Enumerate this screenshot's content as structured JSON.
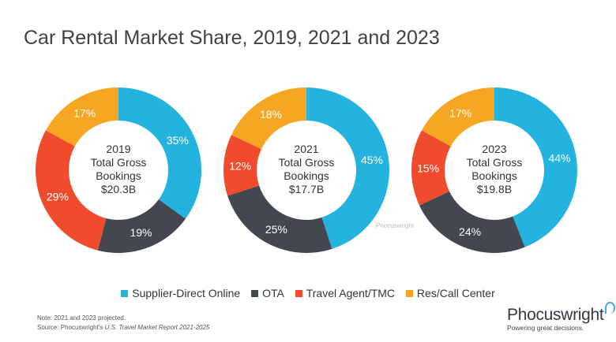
{
  "title": "Car Rental Market Share, 2019, 2021 and 2023",
  "chart_data": [
    {
      "type": "pie",
      "center_label": [
        "2019",
        "Total Gross",
        "Bookings",
        "$20.3B"
      ],
      "categories": [
        "Supplier-Direct Online",
        "OTA",
        "Travel Agent/TMC",
        "Res/Call Center"
      ],
      "values": [
        35,
        19,
        29,
        17
      ]
    },
    {
      "type": "pie",
      "center_label": [
        "2021",
        "Total Gross",
        "Bookings",
        "$17.7B"
      ],
      "categories": [
        "Supplier-Direct Online",
        "OTA",
        "Travel Agent/TMC",
        "Res/Call Center"
      ],
      "values": [
        45,
        25,
        12,
        18
      ]
    },
    {
      "type": "pie",
      "center_label": [
        "2023",
        "Total Gross",
        "Bookings",
        "$19.8B"
      ],
      "categories": [
        "Supplier-Direct Online",
        "OTA",
        "Travel Agent/TMC",
        "Res/Call Center"
      ],
      "values": [
        44,
        24,
        15,
        17
      ]
    }
  ],
  "legend": [
    {
      "label": "Supplier-Direct Online",
      "color": "#24b3de"
    },
    {
      "label": "OTA",
      "color": "#424750"
    },
    {
      "label": "Travel Agent/TMC",
      "color": "#ef4b2c"
    },
    {
      "label": "Res/Call Center",
      "color": "#f6a623"
    }
  ],
  "note": "Note: 2021 and 2023 projected.",
  "source_prefix": "Source: Phocuswright's ",
  "source_title": "U.S. Travel Market Report 2021-2025",
  "watermark": "Phocuswright",
  "logo": {
    "name": "Phocuswright",
    "tagline": "Powering great decisions."
  }
}
